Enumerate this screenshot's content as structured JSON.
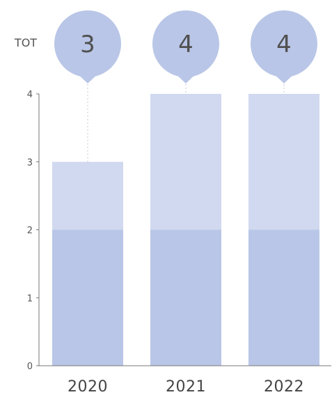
{
  "chart_data": {
    "type": "bar",
    "stacked": true,
    "categories": [
      "2020",
      "2021",
      "2022"
    ],
    "series": [
      {
        "values": [
          2,
          2,
          2
        ]
      },
      {
        "values": [
          1,
          2,
          2
        ]
      }
    ],
    "totals": [
      3,
      4,
      4
    ],
    "total_label": "TOT",
    "title": "",
    "xlabel": "",
    "ylabel": "",
    "ylim": [
      0,
      4
    ],
    "yticks": [
      "0",
      "1",
      "2",
      "3",
      "4"
    ],
    "grid": false,
    "legend": "none",
    "colors": {
      "series_bottom": "#b9c6e7",
      "series_top": "#d0d9ef",
      "bubble": "#b9c6e7",
      "axis": "#777777",
      "connector": "#c4c9d6"
    }
  }
}
